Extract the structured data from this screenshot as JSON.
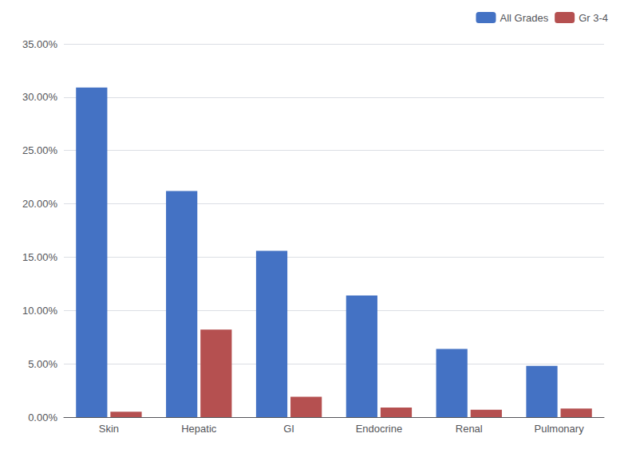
{
  "chart_data": {
    "type": "bar",
    "categories": [
      "Skin",
      "Hepatic",
      "GI",
      "Endocrine",
      "Renal",
      "Pulmonary"
    ],
    "series": [
      {
        "name": "All Grades",
        "color": "#4472C4",
        "values": [
          0.309,
          0.212,
          0.156,
          0.114,
          0.064,
          0.048
        ]
      },
      {
        "name": "Gr 3-4",
        "color": "#B55050",
        "values": [
          0.005,
          0.082,
          0.019,
          0.009,
          0.007,
          0.008
        ]
      }
    ],
    "ylim": [
      0,
      0.35
    ],
    "yticks": [
      {
        "value": 0.0,
        "label": "0.00%"
      },
      {
        "value": 0.05,
        "label": "5.00%"
      },
      {
        "value": 0.1,
        "label": "10.00%"
      },
      {
        "value": 0.15,
        "label": "15.00%"
      },
      {
        "value": 0.2,
        "label": "20.00%"
      },
      {
        "value": 0.25,
        "label": "25.00%"
      },
      {
        "value": 0.3,
        "label": "30.00%"
      },
      {
        "value": 0.35,
        "label": "35.00%"
      }
    ],
    "grid": true,
    "legend": "upper right"
  }
}
